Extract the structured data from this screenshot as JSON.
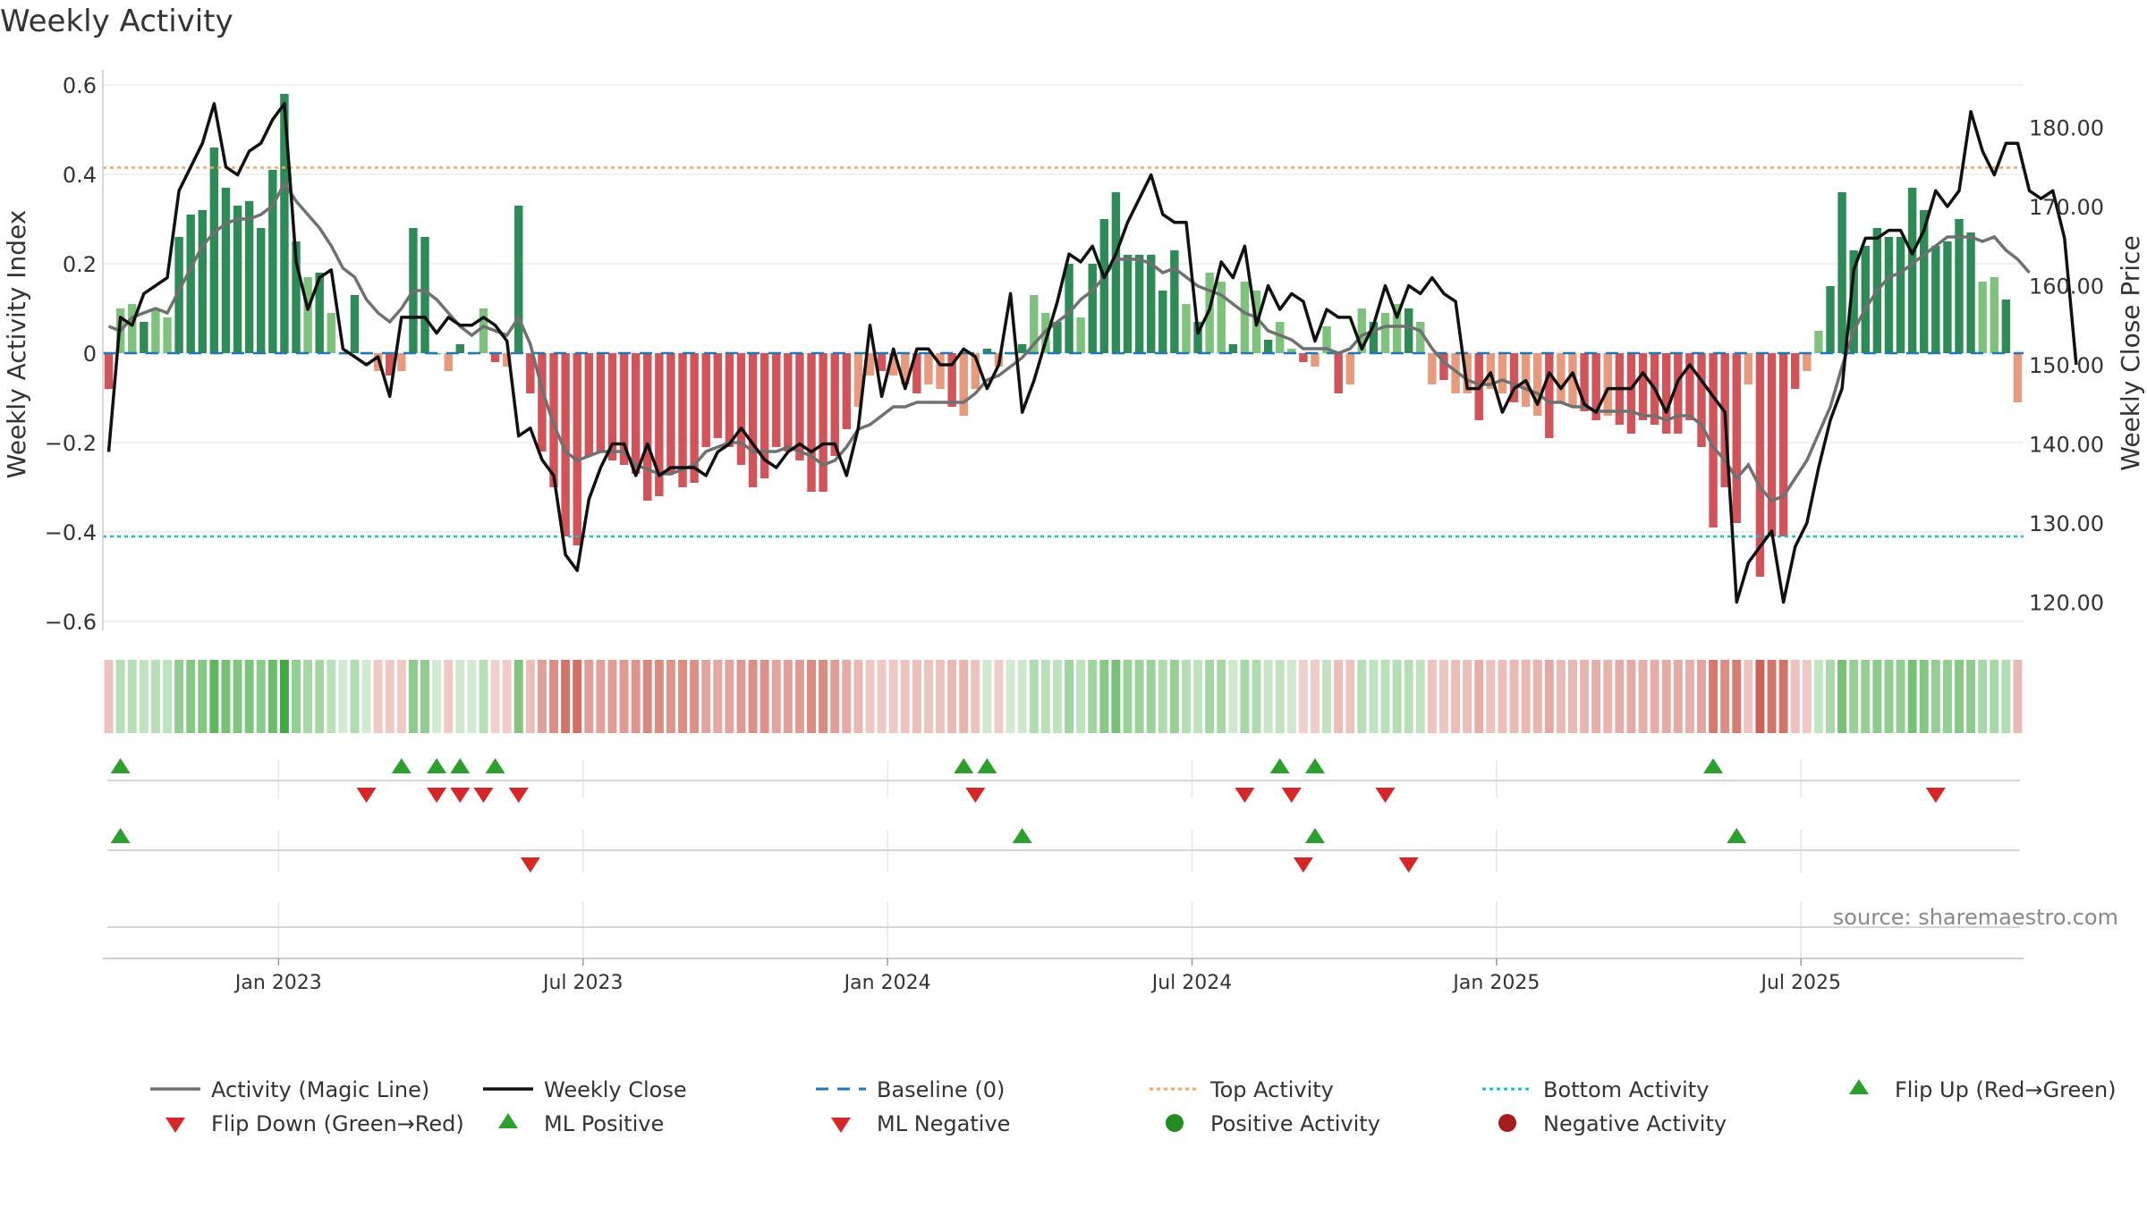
{
  "title": "Weekly Activity",
  "source_note": "source: sharemaestro.com",
  "colors": {
    "pos_dark": "#2e8b57",
    "pos_light": "#7ec27e",
    "neg_dark": "#d1545a",
    "neg_light": "#e79a7e",
    "magic_line": "#707070",
    "close_line": "#111111",
    "baseline": "#1f77b4",
    "top": "#f5a55c",
    "bottom": "#17becf",
    "flip_up": "#2ca02c",
    "flip_down": "#d62728"
  },
  "chart_data": {
    "type": "bar",
    "title": "Weekly Activity",
    "ylabel": "Weekly Activity Index",
    "y2label": "Weekly Close Price",
    "ylim": [
      -0.62,
      0.6
    ],
    "y2lim": [
      116,
      186
    ],
    "yticks": [
      {
        "v": 0.6,
        "label": "0.6"
      },
      {
        "v": 0.4,
        "label": "0.4"
      },
      {
        "v": 0.2,
        "label": "0.2"
      },
      {
        "v": 0,
        "label": "0"
      },
      {
        "v": -0.2,
        "label": "−0.2"
      },
      {
        "v": -0.4,
        "label": "−0.4"
      },
      {
        "v": -0.6,
        "label": "−0.6"
      }
    ],
    "y2ticks": [
      {
        "v": 180,
        "label": "180.00"
      },
      {
        "v": 170,
        "label": "170.00"
      },
      {
        "v": 160,
        "label": "160.00"
      },
      {
        "v": 150,
        "label": "150.00"
      },
      {
        "v": 140,
        "label": "140.00"
      },
      {
        "v": 130,
        "label": "130.00"
      },
      {
        "v": 120,
        "label": "120.00"
      }
    ],
    "xticks": [
      {
        "idx": 14.5,
        "label": "Jan 2023"
      },
      {
        "idx": 40.5,
        "label": "Jul 2023"
      },
      {
        "idx": 66.5,
        "label": "Jan 2024"
      },
      {
        "idx": 92.5,
        "label": "Jul 2024"
      },
      {
        "idx": 118.5,
        "label": "Jan 2025"
      },
      {
        "idx": 144.5,
        "label": "Jul 2025"
      }
    ],
    "top_activity": 0.415,
    "bottom_activity": -0.41,
    "baseline": 0,
    "activity": [
      -0.08,
      0.1,
      0.11,
      0.07,
      0.1,
      0.08,
      0.26,
      0.31,
      0.32,
      0.46,
      0.37,
      0.33,
      0.34,
      0.28,
      0.41,
      0.58,
      0.25,
      0.17,
      0.18,
      0.09,
      0.0,
      0.13,
      0.0,
      -0.04,
      -0.05,
      -0.04,
      0.28,
      0.26,
      0.0,
      -0.04,
      0.02,
      0.0,
      0.1,
      -0.02,
      -0.03,
      0.33,
      -0.09,
      -0.22,
      -0.3,
      -0.41,
      -0.43,
      -0.23,
      -0.22,
      -0.24,
      -0.25,
      -0.27,
      -0.33,
      -0.32,
      -0.27,
      -0.3,
      -0.29,
      -0.21,
      -0.19,
      -0.21,
      -0.25,
      -0.3,
      -0.28,
      -0.21,
      -0.22,
      -0.24,
      -0.31,
      -0.31,
      -0.23,
      -0.17,
      -0.12,
      -0.05,
      -0.04,
      -0.05,
      -0.07,
      -0.09,
      -0.07,
      -0.08,
      -0.12,
      -0.14,
      -0.08,
      0.01,
      -0.03,
      0.0,
      0.02,
      0.13,
      0.09,
      0.07,
      0.2,
      0.08,
      0.2,
      0.3,
      0.36,
      0.22,
      0.22,
      0.22,
      0.14,
      0.23,
      0.11,
      0.07,
      0.18,
      0.16,
      0.02,
      0.16,
      0.14,
      0.03,
      0.07,
      0.01,
      -0.02,
      -0.03,
      0.06,
      -0.09,
      -0.07,
      0.1,
      0.07,
      0.09,
      0.11,
      0.1,
      0.07,
      -0.07,
      -0.06,
      -0.09,
      -0.09,
      -0.15,
      -0.08,
      -0.09,
      -0.11,
      -0.12,
      -0.14,
      -0.19,
      -0.11,
      -0.12,
      -0.13,
      -0.15,
      -0.14,
      -0.16,
      -0.18,
      -0.15,
      -0.16,
      -0.18,
      -0.18,
      -0.15,
      -0.21,
      -0.39,
      -0.3,
      -0.38,
      -0.07,
      -0.5,
      -0.41,
      -0.41,
      -0.08,
      -0.04,
      0.05,
      0.15,
      0.36,
      0.23,
      0.24,
      0.28,
      0.26,
      0.26,
      0.37,
      0.32,
      0.24,
      0.25,
      0.3,
      0.27,
      0.16,
      0.17,
      0.12,
      -0.11
    ],
    "magic_line": [
      0.06,
      0.05,
      0.08,
      0.09,
      0.1,
      0.09,
      0.14,
      0.19,
      0.24,
      0.27,
      0.29,
      0.3,
      0.3,
      0.31,
      0.33,
      0.38,
      0.34,
      0.31,
      0.28,
      0.24,
      0.19,
      0.17,
      0.12,
      0.09,
      0.07,
      0.1,
      0.14,
      0.14,
      0.12,
      0.09,
      0.06,
      0.04,
      0.06,
      0.05,
      0.04,
      0.08,
      0.02,
      -0.08,
      -0.16,
      -0.22,
      -0.24,
      -0.23,
      -0.22,
      -0.22,
      -0.22,
      -0.25,
      -0.26,
      -0.27,
      -0.27,
      -0.26,
      -0.25,
      -0.22,
      -0.21,
      -0.2,
      -0.2,
      -0.22,
      -0.22,
      -0.22,
      -0.21,
      -0.22,
      -0.23,
      -0.25,
      -0.24,
      -0.21,
      -0.17,
      -0.16,
      -0.14,
      -0.12,
      -0.12,
      -0.11,
      -0.11,
      -0.11,
      -0.11,
      -0.11,
      -0.09,
      -0.06,
      -0.05,
      -0.03,
      -0.01,
      0.02,
      0.05,
      0.07,
      0.09,
      0.12,
      0.14,
      0.17,
      0.21,
      0.21,
      0.21,
      0.2,
      0.18,
      0.19,
      0.17,
      0.15,
      0.14,
      0.13,
      0.11,
      0.09,
      0.08,
      0.05,
      0.04,
      0.03,
      0.01,
      0.01,
      0.01,
      0.0,
      0.01,
      0.04,
      0.05,
      0.06,
      0.06,
      0.06,
      0.05,
      0.01,
      -0.02,
      -0.04,
      -0.06,
      -0.07,
      -0.07,
      -0.06,
      -0.07,
      -0.08,
      -0.09,
      -0.11,
      -0.11,
      -0.12,
      -0.12,
      -0.13,
      -0.13,
      -0.13,
      -0.13,
      -0.14,
      -0.14,
      -0.15,
      -0.14,
      -0.14,
      -0.16,
      -0.21,
      -0.24,
      -0.28,
      -0.25,
      -0.3,
      -0.33,
      -0.32,
      -0.28,
      -0.24,
      -0.18,
      -0.12,
      -0.03,
      0.05,
      0.1,
      0.14,
      0.17,
      0.18,
      0.2,
      0.22,
      0.24,
      0.26,
      0.26,
      0.26,
      0.25,
      0.26,
      0.23,
      0.21,
      0.18
    ],
    "weekly_close": [
      139,
      156,
      155,
      159,
      160,
      161,
      172,
      175,
      178,
      183,
      175,
      174,
      177,
      178,
      181,
      183,
      163,
      157,
      161,
      162,
      152,
      151,
      150,
      151,
      146,
      156,
      156,
      156,
      154,
      156,
      155,
      155,
      156,
      155,
      153,
      141,
      142,
      138,
      136,
      126,
      124,
      133,
      137,
      140,
      140,
      136,
      140,
      136,
      137,
      137,
      137,
      136,
      139,
      140,
      142,
      140,
      138,
      137,
      139,
      140,
      139,
      140,
      140,
      136,
      142,
      155,
      146,
      152,
      147,
      152,
      152,
      150,
      150,
      152,
      151,
      147,
      150,
      159,
      144,
      148,
      153,
      158,
      164,
      163,
      165,
      161,
      164,
      168,
      171,
      174,
      169,
      168,
      168,
      154,
      157,
      163,
      161,
      165,
      155,
      160,
      157,
      159,
      158,
      153,
      157,
      156,
      156,
      152,
      155,
      160,
      156,
      160,
      159,
      161,
      159,
      158,
      147,
      147,
      149,
      144,
      147,
      148,
      145,
      149,
      147,
      149,
      145,
      144,
      147,
      147,
      147,
      149,
      147,
      144,
      148,
      150,
      148,
      146,
      144,
      120,
      125,
      127,
      129,
      120,
      127,
      130,
      137,
      143,
      147,
      162,
      166,
      166,
      167,
      167,
      164,
      167,
      172,
      170,
      172,
      182,
      177,
      174,
      178,
      178,
      172,
      171,
      172,
      166,
      150
    ],
    "state_strip": [
      -0.08,
      0.1,
      0.11,
      0.07,
      0.1,
      0.08,
      0.26,
      0.31,
      0.32,
      0.46,
      0.37,
      0.33,
      0.34,
      0.28,
      0.41,
      0.58,
      0.25,
      0.17,
      0.18,
      0.09,
      0.0,
      0.13,
      0.0,
      -0.04,
      -0.05,
      -0.04,
      0.28,
      0.26,
      0.0,
      -0.04,
      0.02,
      0.0,
      0.1,
      -0.02,
      -0.03,
      0.33,
      -0.09,
      -0.22,
      -0.3,
      -0.41,
      -0.43,
      -0.23,
      -0.22,
      -0.24,
      -0.25,
      -0.27,
      -0.33,
      -0.32,
      -0.27,
      -0.3,
      -0.29,
      -0.21,
      -0.19,
      -0.21,
      -0.25,
      -0.3,
      -0.28,
      -0.21,
      -0.22,
      -0.24,
      -0.31,
      -0.31,
      -0.23,
      -0.17,
      -0.12,
      -0.05,
      -0.04,
      -0.05,
      -0.07,
      -0.09,
      -0.07,
      -0.08,
      -0.12,
      -0.14,
      -0.08,
      0.01,
      -0.03,
      0.0,
      0.02,
      0.13,
      0.09,
      0.07,
      0.2,
      0.08,
      0.2,
      0.3,
      0.36,
      0.22,
      0.22,
      0.22,
      0.14,
      0.23,
      0.11,
      0.07,
      0.18,
      0.16,
      0.02,
      0.16,
      0.14,
      0.03,
      0.07,
      0.01,
      -0.02,
      -0.03,
      0.06,
      -0.09,
      -0.07,
      0.1,
      0.07,
      0.09,
      0.11,
      0.1,
      0.07,
      -0.07,
      -0.06,
      -0.09,
      -0.09,
      -0.15,
      -0.08,
      -0.09,
      -0.11,
      -0.12,
      -0.14,
      -0.19,
      -0.11,
      -0.12,
      -0.13,
      -0.15,
      -0.14,
      -0.16,
      -0.18,
      -0.15,
      -0.16,
      -0.18,
      -0.18,
      -0.15,
      -0.21,
      -0.39,
      -0.3,
      -0.38,
      -0.07,
      -0.5,
      -0.41,
      -0.41,
      -0.08,
      -0.04,
      0.05,
      0.15,
      0.36,
      0.23,
      0.24,
      0.28,
      0.26,
      0.26,
      0.37,
      0.32,
      0.24,
      0.25,
      0.3,
      0.27,
      0.16,
      0.17,
      0.12,
      -0.11
    ],
    "flip_up_weeks": [
      1,
      25,
      28,
      30,
      33,
      73,
      75,
      100,
      103,
      137
    ],
    "flip_down_weeks": [
      22,
      28,
      30,
      32,
      35,
      74,
      97,
      101,
      109,
      156
    ],
    "ml_positive_weeks": [
      1,
      78,
      103,
      139
    ],
    "ml_negative_weeks": [
      36,
      102,
      111
    ],
    "legend": [
      {
        "key": "magic",
        "label": "Activity (Magic Line)"
      },
      {
        "key": "close",
        "label": "Weekly Close"
      },
      {
        "key": "baseline",
        "label": "Baseline (0)"
      },
      {
        "key": "top",
        "label": "Top Activity"
      },
      {
        "key": "bottom",
        "label": "Bottom Activity"
      },
      {
        "key": "flipup",
        "label": "Flip Up (Red→Green)"
      },
      {
        "key": "flipdown",
        "label": "Flip Down (Green→Red)"
      },
      {
        "key": "mlpos",
        "label": "ML Positive"
      },
      {
        "key": "mlneg",
        "label": "ML Negative"
      },
      {
        "key": "posact",
        "label": "Positive Activity"
      },
      {
        "key": "negact",
        "label": "Negative Activity"
      }
    ]
  }
}
